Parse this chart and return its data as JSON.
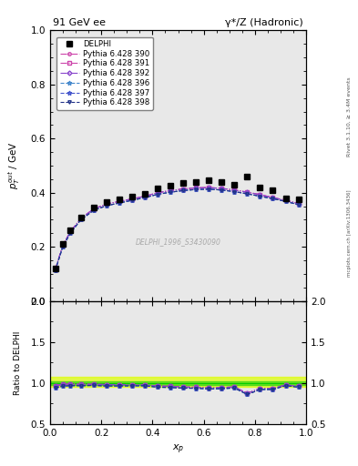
{
  "title_left": "91 GeV ee",
  "title_right": "γ*/Z (Hadronic)",
  "ylabel_main": "$p_T^{out}$ / GeV",
  "ylabel_ratio": "Ratio to DELPHI",
  "xlabel": "$x_p$",
  "rivet_label": "Rivet 3.1.10, ≥ 3.4M events",
  "arxiv_label": "[arXiv:1306.3436]",
  "mcplots_label": "mcplots.cern.ch",
  "dataset_label": "DELPHI_1996_S3430090",
  "ylim_main": [
    0.0,
    1.0
  ],
  "ylim_ratio": [
    0.5,
    2.0
  ],
  "xlim": [
    0.0,
    1.0
  ],
  "data_x": [
    0.02,
    0.05,
    0.08,
    0.12,
    0.17,
    0.22,
    0.27,
    0.32,
    0.37,
    0.42,
    0.47,
    0.52,
    0.57,
    0.62,
    0.67,
    0.72,
    0.77,
    0.82,
    0.87,
    0.92,
    0.97
  ],
  "data_y": [
    0.12,
    0.21,
    0.26,
    0.31,
    0.345,
    0.365,
    0.375,
    0.385,
    0.395,
    0.415,
    0.425,
    0.435,
    0.44,
    0.445,
    0.44,
    0.43,
    0.46,
    0.42,
    0.41,
    0.38,
    0.375
  ],
  "mc_x": [
    0.02,
    0.05,
    0.08,
    0.12,
    0.17,
    0.22,
    0.27,
    0.32,
    0.37,
    0.42,
    0.47,
    0.52,
    0.57,
    0.62,
    0.67,
    0.72,
    0.77,
    0.82,
    0.87,
    0.92,
    0.97
  ],
  "mc390_y": [
    0.116,
    0.207,
    0.257,
    0.305,
    0.34,
    0.358,
    0.368,
    0.377,
    0.387,
    0.4,
    0.408,
    0.414,
    0.418,
    0.419,
    0.416,
    0.41,
    0.402,
    0.393,
    0.382,
    0.372,
    0.36
  ],
  "mc391_y": [
    0.116,
    0.207,
    0.257,
    0.305,
    0.34,
    0.358,
    0.368,
    0.377,
    0.387,
    0.4,
    0.408,
    0.414,
    0.418,
    0.419,
    0.416,
    0.41,
    0.402,
    0.393,
    0.382,
    0.372,
    0.36
  ],
  "mc392_y": [
    0.116,
    0.207,
    0.257,
    0.305,
    0.34,
    0.358,
    0.368,
    0.377,
    0.387,
    0.4,
    0.408,
    0.414,
    0.418,
    0.419,
    0.416,
    0.41,
    0.402,
    0.393,
    0.382,
    0.372,
    0.36
  ],
  "mc396_y": [
    0.113,
    0.202,
    0.252,
    0.3,
    0.335,
    0.352,
    0.362,
    0.372,
    0.382,
    0.394,
    0.402,
    0.408,
    0.412,
    0.413,
    0.41,
    0.404,
    0.396,
    0.387,
    0.378,
    0.368,
    0.356
  ],
  "mc397_y": [
    0.113,
    0.202,
    0.252,
    0.3,
    0.335,
    0.352,
    0.362,
    0.372,
    0.382,
    0.394,
    0.402,
    0.408,
    0.412,
    0.413,
    0.41,
    0.404,
    0.396,
    0.387,
    0.378,
    0.368,
    0.356
  ],
  "mc398_y": [
    0.113,
    0.202,
    0.252,
    0.3,
    0.335,
    0.352,
    0.362,
    0.372,
    0.382,
    0.394,
    0.402,
    0.408,
    0.412,
    0.413,
    0.41,
    0.404,
    0.396,
    0.387,
    0.378,
    0.368,
    0.356
  ],
  "mc390_color": "#cc44aa",
  "mc391_color": "#cc44aa",
  "mc392_color": "#8844cc",
  "mc396_color": "#4488cc",
  "mc397_color": "#4455cc",
  "mc398_color": "#223388",
  "mc390_marker": "o",
  "mc391_marker": "s",
  "mc392_marker": "D",
  "mc396_marker": "*",
  "mc397_marker": "*",
  "mc398_marker": "v",
  "mc390_ls": "-.",
  "mc391_ls": "-.",
  "mc392_ls": "-.",
  "mc396_ls": "--",
  "mc397_ls": "--",
  "mc398_ls": "--",
  "data_color": "#000000",
  "data_marker": "s",
  "data_markersize": 4,
  "ratio_band_yellow": "#ddff00",
  "ratio_band_green": "#00cc00",
  "ratio_band_alpha": 0.6,
  "legend_labels": [
    "DELPHI",
    "Pythia 6.428 390",
    "Pythia 6.428 391",
    "Pythia 6.428 392",
    "Pythia 6.428 396",
    "Pythia 6.428 397",
    "Pythia 6.428 398"
  ],
  "bg_color": "#e8e8e8"
}
